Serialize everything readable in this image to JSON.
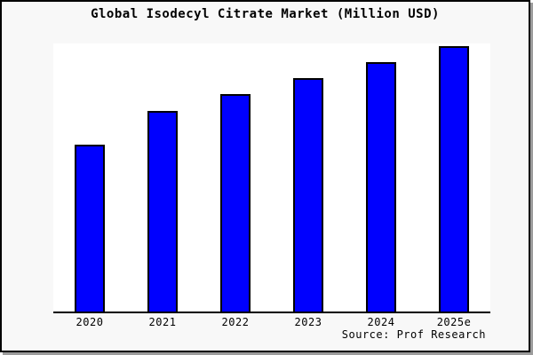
{
  "title": "Global Isodecyl Citrate Market (Million USD)",
  "source": "Source: Prof Research",
  "colors": {
    "bar_fill": "#0000fe",
    "bar_border": "#000000",
    "page_background": "#f8f8f8",
    "plot_background": "#ffffff",
    "axis": "#000000",
    "frame_shadow": "#9c9c9c"
  },
  "chart_data": {
    "type": "bar",
    "title": "Global Isodecyl Citrate Market (Million USD)",
    "categories": [
      "2020",
      "2021",
      "2022",
      "2023",
      "2024",
      "2025e"
    ],
    "values": [
      63,
      75.5,
      82,
      88,
      94,
      100
    ],
    "xlabel": "",
    "ylabel": "",
    "ylim": [
      0,
      101
    ],
    "grid": false,
    "legend": "none",
    "y_axis_labels_shown": false,
    "annotation": "Source: Prof Research"
  }
}
